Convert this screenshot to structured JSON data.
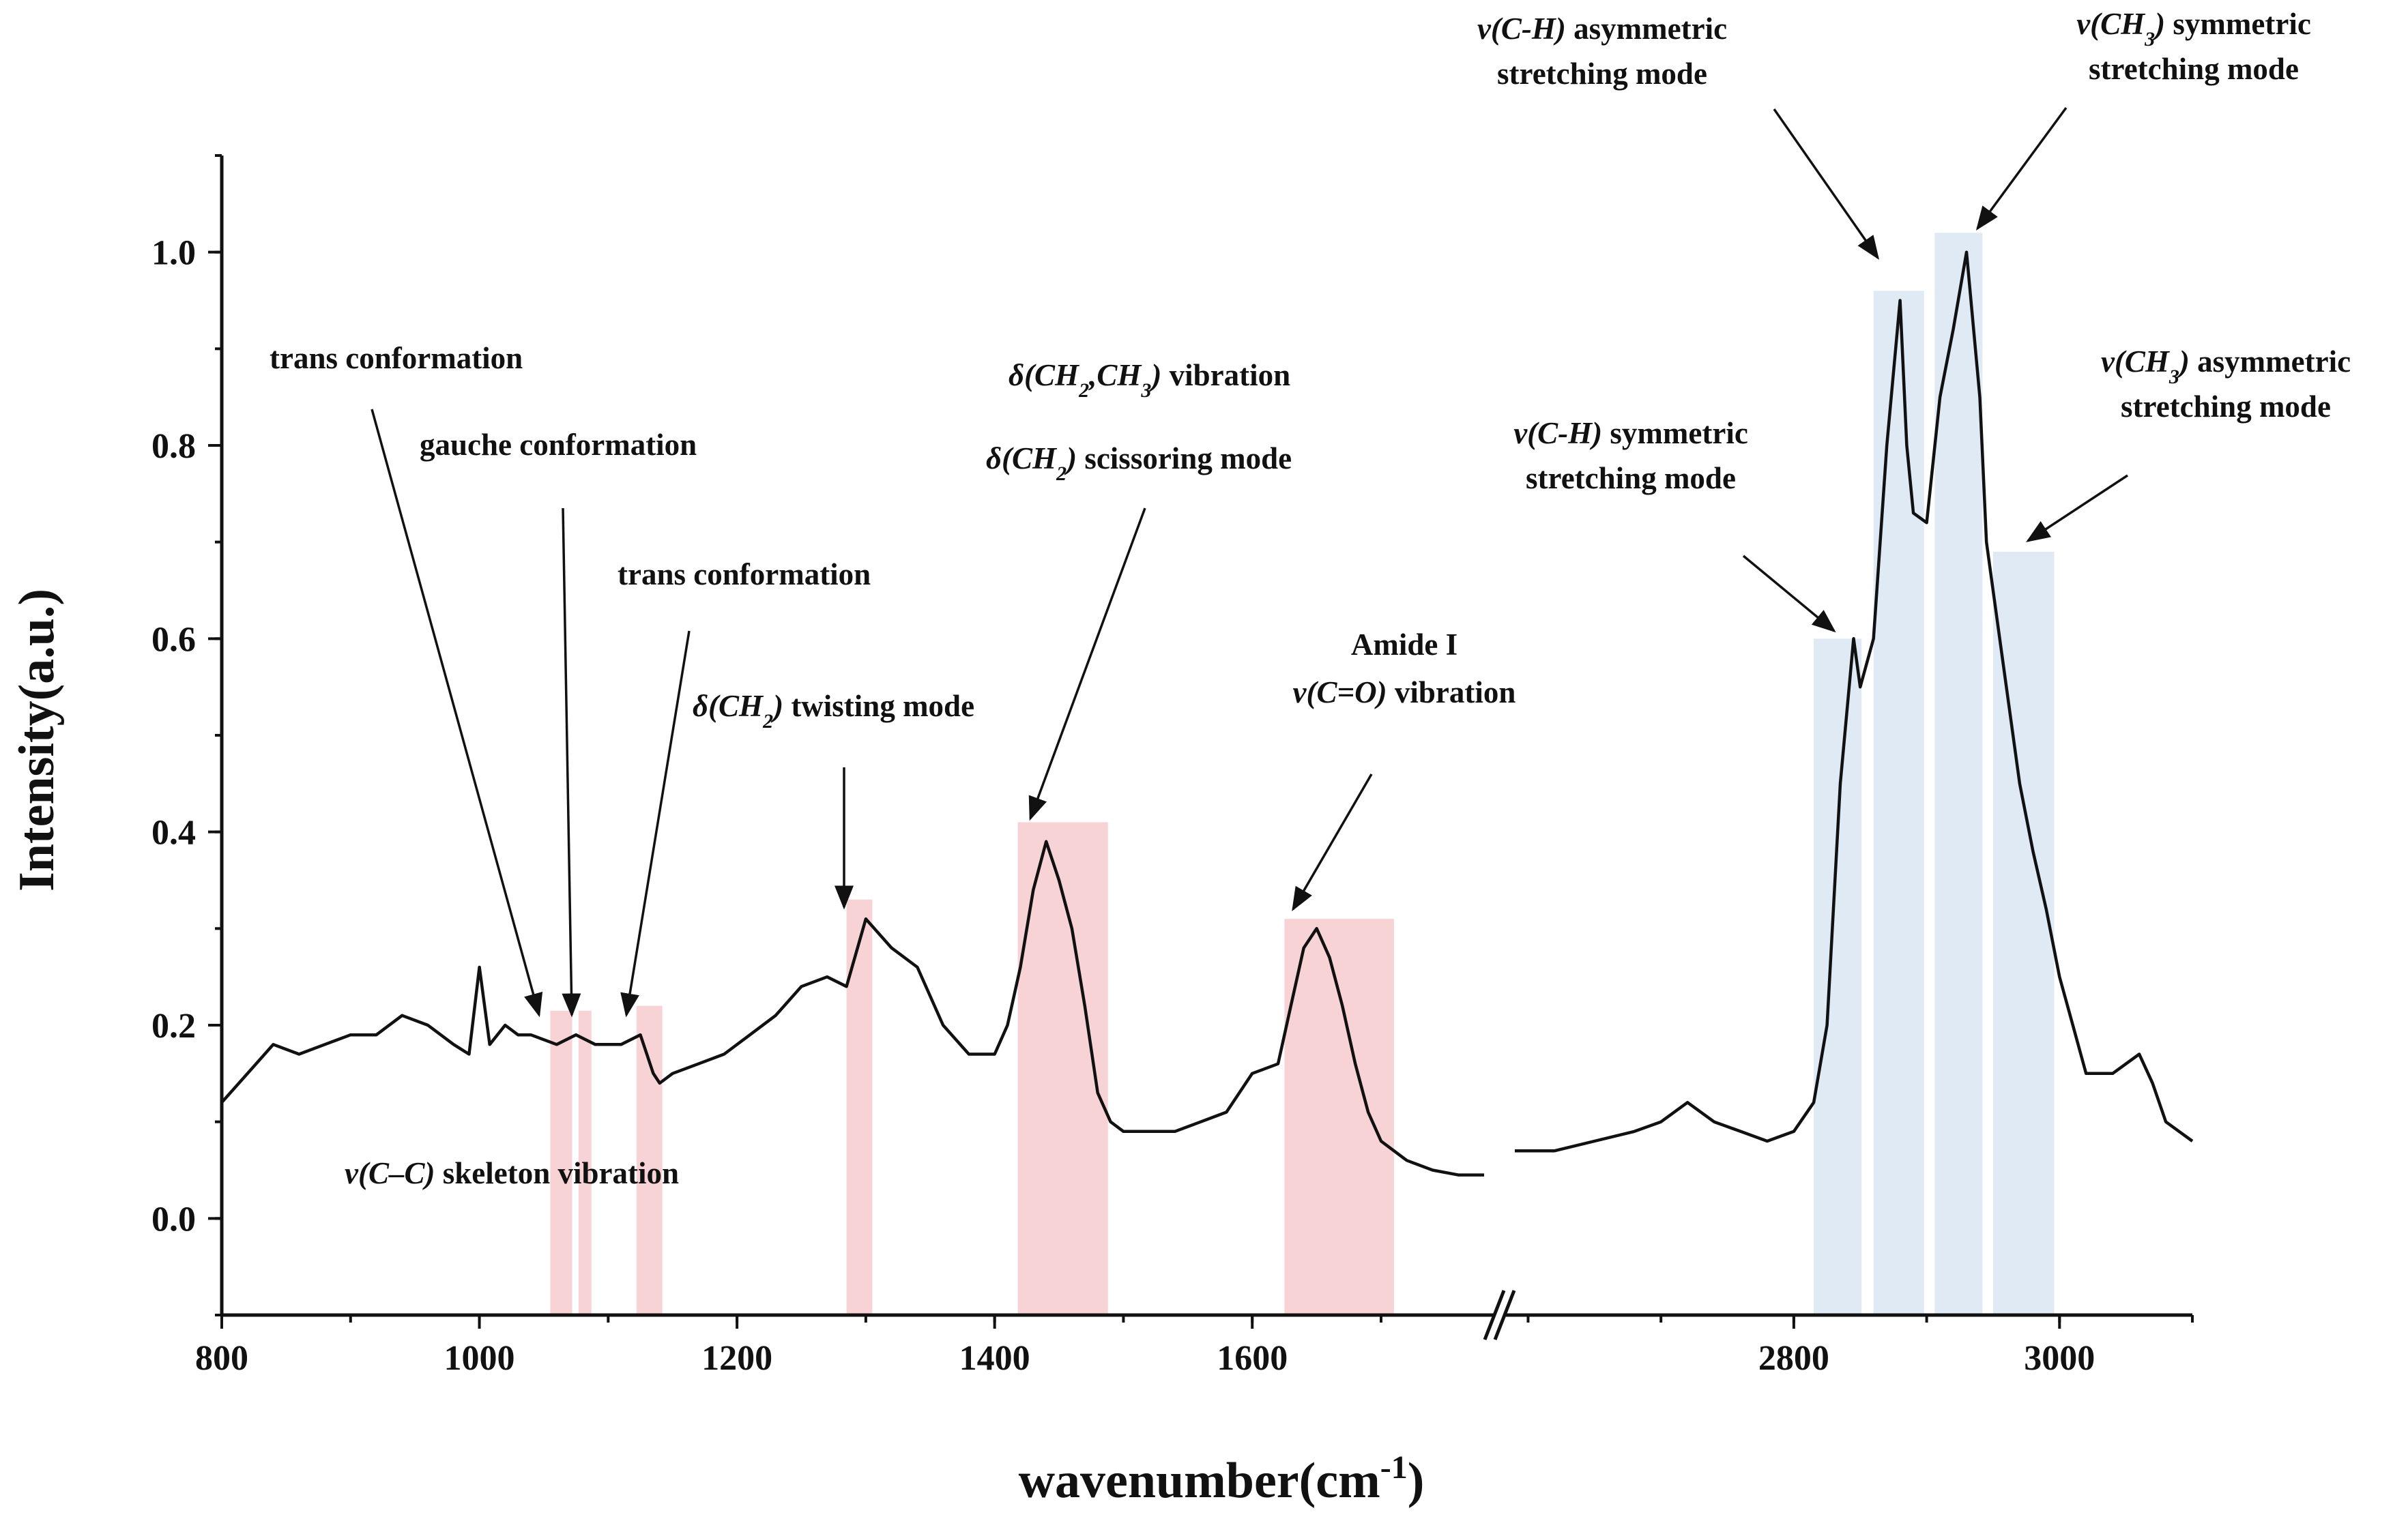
{
  "chart_data": {
    "type": "line",
    "title": "",
    "xlabel": "wavenumber(cm",
    "xlabel_sup": "-1",
    "xlabel_close": ")",
    "ylabel": "Intensity(a.u.)",
    "ylim": [
      -0.1,
      1.1
    ],
    "x_segments": [
      {
        "range": [
          800,
          1780
        ],
        "ticks": [
          "800",
          "1000",
          "1200",
          "1400",
          "1600"
        ]
      },
      {
        "range": [
          2590,
          3100
        ],
        "ticks": [
          "2800",
          "3000"
        ]
      }
    ],
    "y_ticks": [
      "0.0",
      "0.2",
      "0.4",
      "0.6",
      "0.8",
      "1.0"
    ],
    "axis_break": true,
    "grid": false,
    "series": [
      {
        "segment": 0,
        "x": [
          800,
          820,
          840,
          860,
          880,
          900,
          920,
          940,
          960,
          980,
          992,
          1000,
          1008,
          1020,
          1030,
          1040,
          1060,
          1075,
          1090,
          1110,
          1125,
          1135,
          1140,
          1150,
          1170,
          1190,
          1210,
          1230,
          1250,
          1270,
          1285,
          1300,
          1320,
          1340,
          1360,
          1380,
          1400,
          1410,
          1420,
          1430,
          1440,
          1450,
          1460,
          1470,
          1480,
          1490,
          1500,
          1520,
          1540,
          1560,
          1580,
          1600,
          1620,
          1630,
          1640,
          1650,
          1660,
          1670,
          1680,
          1690,
          1700,
          1720,
          1740,
          1760,
          1780
        ],
        "y": [
          0.12,
          0.15,
          0.18,
          0.17,
          0.18,
          0.19,
          0.19,
          0.21,
          0.2,
          0.18,
          0.17,
          0.26,
          0.18,
          0.2,
          0.19,
          0.19,
          0.18,
          0.19,
          0.18,
          0.18,
          0.19,
          0.15,
          0.14,
          0.15,
          0.16,
          0.17,
          0.19,
          0.21,
          0.24,
          0.25,
          0.24,
          0.31,
          0.28,
          0.26,
          0.2,
          0.17,
          0.17,
          0.2,
          0.26,
          0.34,
          0.39,
          0.35,
          0.3,
          0.22,
          0.13,
          0.1,
          0.09,
          0.09,
          0.09,
          0.1,
          0.11,
          0.15,
          0.16,
          0.22,
          0.28,
          0.3,
          0.27,
          0.22,
          0.16,
          0.11,
          0.08,
          0.06,
          0.05,
          0.045,
          0.045
        ]
      },
      {
        "segment": 1,
        "x": [
          2590,
          2620,
          2650,
          2680,
          2700,
          2720,
          2740,
          2760,
          2780,
          2800,
          2815,
          2825,
          2835,
          2845,
          2850,
          2860,
          2870,
          2880,
          2885,
          2890,
          2900,
          2910,
          2920,
          2930,
          2940,
          2945,
          2950,
          2960,
          2970,
          2980,
          2990,
          3000,
          3010,
          3020,
          3040,
          3060,
          3070,
          3080,
          3090,
          3100
        ],
        "y": [
          0.07,
          0.07,
          0.08,
          0.09,
          0.1,
          0.12,
          0.1,
          0.09,
          0.08,
          0.09,
          0.12,
          0.2,
          0.45,
          0.6,
          0.55,
          0.6,
          0.8,
          0.95,
          0.8,
          0.73,
          0.72,
          0.85,
          0.92,
          1.0,
          0.85,
          0.7,
          0.65,
          0.55,
          0.45,
          0.38,
          0.32,
          0.25,
          0.2,
          0.15,
          0.15,
          0.17,
          0.14,
          0.1,
          0.09,
          0.08
        ]
      }
    ],
    "highlight_bands": [
      {
        "color": "#f7d3d6",
        "x0": 1055,
        "x1": 1072,
        "y1": 0.215
      },
      {
        "color": "#f7d3d6",
        "x0": 1077,
        "x1": 1087,
        "y1": 0.215
      },
      {
        "color": "#f7d3d6",
        "x0": 1122,
        "x1": 1142,
        "y1": 0.22
      },
      {
        "color": "#f7d3d6",
        "x0": 1285,
        "x1": 1305,
        "y1": 0.33
      },
      {
        "color": "#f7d3d6",
        "x0": 1418,
        "x1": 1488,
        "y1": 0.41
      },
      {
        "color": "#f7d3d6",
        "x0": 1625,
        "x1": 1710,
        "y1": 0.31
      },
      {
        "color": "#dfeaf5",
        "x0": 2815,
        "x1": 2851,
        "y1": 0.6
      },
      {
        "color": "#dfeaf5",
        "x0": 2860,
        "x1": 2898,
        "y1": 0.96
      },
      {
        "color": "#dfeaf5",
        "x0": 2906,
        "x1": 2942,
        "y1": 1.02
      },
      {
        "color": "#dfeaf5",
        "x0": 2950,
        "x1": 2996,
        "y1": 0.69
      }
    ],
    "annotations": [
      {
        "lines": [
          [
            {
              "t": "trans conformation"
            }
          ]
        ],
        "anchor": "start",
        "tx": 395,
        "ty": 540,
        "arrow": [
          [
            545,
            600
          ],
          [
            790,
            1488
          ]
        ]
      },
      {
        "lines": [
          [
            {
              "t": "gauche conformation"
            }
          ]
        ],
        "anchor": "start",
        "tx": 615,
        "ty": 667,
        "arrow": [
          [
            825,
            745
          ],
          [
            838,
            1488
          ]
        ]
      },
      {
        "lines": [
          [
            {
              "t": "trans conformation"
            }
          ]
        ],
        "anchor": "start",
        "tx": 905,
        "ty": 857,
        "arrow": [
          [
            1010,
            925
          ],
          [
            918,
            1488
          ]
        ]
      },
      {
        "lines": [
          [
            {
              "t": "δ(CH",
              "i": true
            },
            {
              "t": "2",
              "i": true,
              "sub": true
            },
            {
              "t": ")",
              "i": true
            },
            {
              "t": " twisting mode"
            }
          ]
        ],
        "anchor": "start",
        "tx": 1015,
        "ty": 1050,
        "arrow": [
          [
            1237,
            1125
          ],
          [
            1237,
            1330
          ]
        ]
      },
      {
        "lines": [
          [
            {
              "t": "δ(CH",
              "i": true
            },
            {
              "t": "2",
              "i": true,
              "sub": true
            },
            {
              "t": ",CH",
              "i": true
            },
            {
              "t": "3",
              "i": true,
              "sub": true
            },
            {
              "t": ")",
              "i": true
            },
            {
              "t": " vibration"
            }
          ]
        ],
        "anchor": "start",
        "tx": 1478,
        "ty": 565,
        "arrow": null
      },
      {
        "lines": [
          [
            {
              "t": "δ(CH",
              "i": true
            },
            {
              "t": "2",
              "i": true,
              "sub": true
            },
            {
              "t": ")",
              "i": true
            },
            {
              "t": " scissoring mode"
            }
          ]
        ],
        "anchor": "start",
        "tx": 1445,
        "ty": 687,
        "arrow": [
          [
            1678,
            745
          ],
          [
            1510,
            1200
          ]
        ]
      },
      {
        "lines": [
          [
            {
              "t": "Amide I"
            }
          ],
          [
            {
              "t": "v(C=O)",
              "i": true
            },
            {
              "t": " vibration"
            }
          ]
        ],
        "anchor": "middle",
        "tx": 2058,
        "ty": 960,
        "lh": 70,
        "arrow": [
          [
            2010,
            1135
          ],
          [
            1895,
            1333
          ]
        ]
      },
      {
        "lines": [
          [
            {
              "t": "v(C–C)",
              "i": true
            },
            {
              "t": " skeleton vibration"
            }
          ]
        ],
        "anchor": "start",
        "tx": 505,
        "ty": 1735,
        "arrow": null
      },
      {
        "lines": [
          [
            {
              "t": "v(C-H)",
              "i": true
            },
            {
              "t": " asymmetric"
            }
          ],
          [
            {
              "t": "stretching mode"
            }
          ]
        ],
        "anchor": "middle",
        "tx": 2348,
        "ty": 57,
        "lh": 66,
        "arrow": [
          [
            2600,
            160
          ],
          [
            2752,
            378
          ]
        ]
      },
      {
        "lines": [
          [
            {
              "t": "v(CH",
              "i": true
            },
            {
              "t": "3",
              "i": true,
              "sub": true
            },
            {
              "t": ")",
              "i": true
            },
            {
              "t": " symmetric"
            }
          ],
          [
            {
              "t": "stretching mode"
            }
          ]
        ],
        "anchor": "middle",
        "tx": 3215,
        "ty": 50,
        "lh": 66,
        "arrow": [
          [
            3028,
            158
          ],
          [
            2898,
            335
          ]
        ]
      },
      {
        "lines": [
          [
            {
              "t": "v(CH",
              "i": true
            },
            {
              "t": "3",
              "i": true,
              "sub": true
            },
            {
              "t": ")",
              "i": true
            },
            {
              "t": " asymmetric"
            }
          ],
          [
            {
              "t": "stretching mode"
            }
          ]
        ],
        "anchor": "middle",
        "tx": 3262,
        "ty": 545,
        "lh": 66,
        "arrow": [
          [
            3118,
            697
          ],
          [
            2972,
            793
          ]
        ]
      },
      {
        "lines": [
          [
            {
              "t": "v(C-H)",
              "i": true
            },
            {
              "t": " symmetric"
            }
          ],
          [
            {
              "t": "stretching mode"
            }
          ]
        ],
        "anchor": "middle",
        "tx": 2390,
        "ty": 650,
        "lh": 66,
        "arrow": [
          [
            2555,
            815
          ],
          [
            2688,
            925
          ]
        ]
      }
    ]
  }
}
